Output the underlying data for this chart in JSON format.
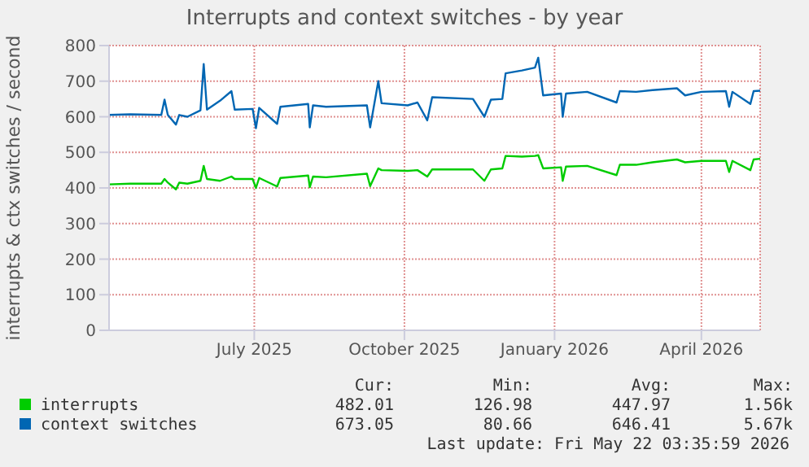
{
  "chart_data": {
    "type": "line",
    "title": "Interrupts and context switches - by year",
    "ylabel": "interrupts & ctx switches / second",
    "x": [
      "2025-04-18",
      "2025-05-01",
      "2025-05-20",
      "2025-05-22",
      "2025-05-24",
      "2025-05-29",
      "2025-05-31",
      "2025-06-05",
      "2025-06-13",
      "2025-06-15",
      "2025-06-17",
      "2025-06-25",
      "2025-07-02",
      "2025-07-04",
      "2025-07-15",
      "2025-07-17",
      "2025-07-19",
      "2025-07-30",
      "2025-08-01",
      "2025-08-18",
      "2025-08-19",
      "2025-08-21",
      "2025-08-29",
      "2025-09-23",
      "2025-09-25",
      "2025-09-30",
      "2025-10-02",
      "2025-10-18",
      "2025-10-24",
      "2025-10-30",
      "2025-11-02",
      "2025-11-27",
      "2025-12-04",
      "2025-12-08",
      "2025-12-15",
      "2025-12-17",
      "2025-12-27",
      "2026-01-04",
      "2026-01-06",
      "2026-01-09",
      "2026-01-20",
      "2026-01-21",
      "2026-01-23",
      "2026-02-05",
      "2026-02-23",
      "2026-02-25",
      "2026-03-07",
      "2026-03-17",
      "2026-04-01",
      "2026-04-06",
      "2026-04-16",
      "2026-05-01",
      "2026-05-03",
      "2026-05-05",
      "2026-05-16",
      "2026-05-18",
      "2026-05-22"
    ],
    "series": [
      {
        "name": "interrupts",
        "color": "#00cc00",
        "values": [
          410,
          412,
          412,
          425,
          415,
          396,
          415,
          412,
          420,
          462,
          425,
          420,
          432,
          425,
          425,
          400,
          428,
          404,
          428,
          435,
          402,
          432,
          430,
          440,
          405,
          455,
          450,
          448,
          450,
          432,
          452,
          452,
          420,
          452,
          455,
          490,
          488,
          490,
          492,
          455,
          458,
          420,
          460,
          462,
          436,
          465,
          465,
          472,
          480,
          472,
          476,
          476,
          445,
          476,
          450,
          480,
          482
        ]
      },
      {
        "name": "context switches",
        "color": "#0066b3",
        "values": [
          605,
          607,
          605,
          648,
          605,
          578,
          605,
          600,
          618,
          748,
          620,
          645,
          672,
          620,
          622,
          568,
          625,
          580,
          628,
          636,
          570,
          632,
          628,
          632,
          570,
          700,
          638,
          632,
          640,
          590,
          655,
          650,
          600,
          648,
          650,
          722,
          730,
          738,
          766,
          660,
          665,
          600,
          665,
          670,
          640,
          672,
          670,
          675,
          680,
          660,
          670,
          672,
          628,
          670,
          636,
          672,
          673
        ]
      }
    ],
    "xlim": [
      "2025-04-18",
      "2026-05-22"
    ],
    "xticks": [
      {
        "value": "2025-07-16",
        "label": "July 2025"
      },
      {
        "value": "2025-10-16",
        "label": "October 2025"
      },
      {
        "value": "2026-01-16",
        "label": "January 2026"
      },
      {
        "value": "2026-04-16",
        "label": "April 2026"
      }
    ],
    "ylim": [
      0,
      800
    ],
    "yticks": [
      0,
      100,
      200,
      300,
      400,
      500,
      600,
      700,
      800
    ],
    "grid": true,
    "legend": "bottom",
    "annotations": [
      "Cur:",
      "Min:",
      "Avg:",
      "Max:",
      "482.01",
      "126.98",
      "447.97",
      "1.56k",
      "673.05",
      "80.66",
      "646.41",
      "5.67k",
      "Last update: Fri May 22 03:35:59 2026"
    ]
  }
}
